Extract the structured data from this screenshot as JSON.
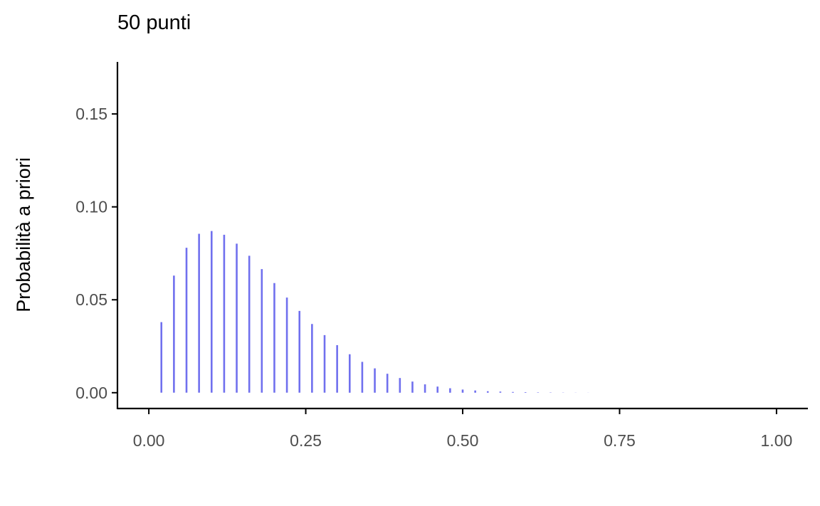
{
  "chart_data": {
    "type": "bar",
    "title": "50 punti",
    "xlabel": "",
    "ylabel": "Probabilità a priori",
    "xlim": [
      -0.05,
      1.05
    ],
    "ylim": [
      -0.0085,
      0.178
    ],
    "xticks": [
      0,
      0.25,
      0.5,
      0.75,
      1
    ],
    "xtick_labels": [
      "0.00",
      "0.25",
      "0.50",
      "0.75",
      "1.00"
    ],
    "yticks": [
      0,
      0.05,
      0.1,
      0.15
    ],
    "ytick_labels": [
      "0.00",
      "0.05",
      "0.10",
      "0.15"
    ],
    "grid": false,
    "color": "#7070ee",
    "x": [
      0.02,
      0.04,
      0.06,
      0.08,
      0.1,
      0.12,
      0.14,
      0.16,
      0.18,
      0.2,
      0.22,
      0.24,
      0.26,
      0.28,
      0.3,
      0.32,
      0.34,
      0.36,
      0.38,
      0.4,
      0.42,
      0.44,
      0.46,
      0.48,
      0.5,
      0.52,
      0.54,
      0.56,
      0.58,
      0.6,
      0.62,
      0.64,
      0.66,
      0.68,
      0.7
    ],
    "values": [
      0.038,
      0.063,
      0.078,
      0.0855,
      0.087,
      0.085,
      0.0802,
      0.0737,
      0.0665,
      0.059,
      0.0512,
      0.044,
      0.037,
      0.031,
      0.0256,
      0.0207,
      0.0166,
      0.0131,
      0.0102,
      0.0079,
      0.006,
      0.0045,
      0.0033,
      0.0024,
      0.0017,
      0.0012,
      0.0008,
      0.0006,
      0.0004,
      0.0003,
      0.0002,
      0.00015,
      0.0001,
      6e-05,
      4e-05
    ]
  }
}
